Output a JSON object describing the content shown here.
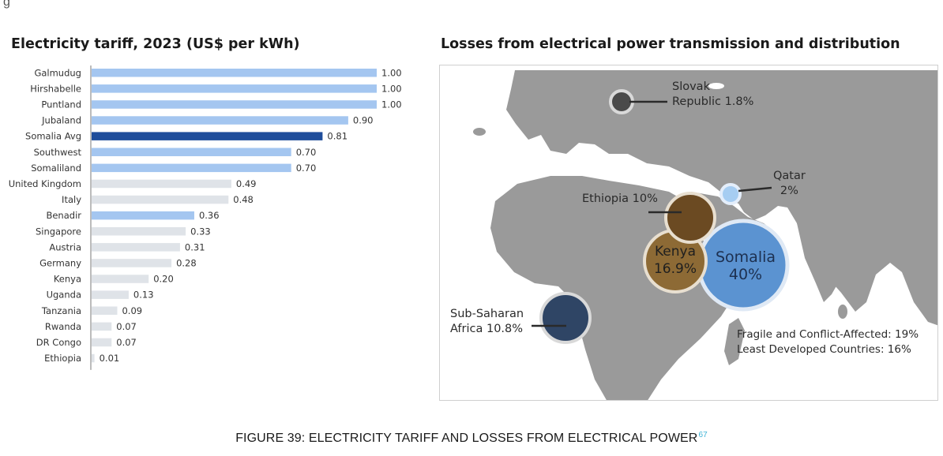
{
  "page": {
    "top_mark": "g",
    "figure_caption": "FIGURE 39: ELECTRICITY TARIFF AND LOSSES FROM ELECTRICAL POWER",
    "footnote_ref": "67"
  },
  "colors": {
    "somalia_region": "#a4c6f0",
    "somalia_avg": "#1f4d9b",
    "other_country": "#dfe3e8",
    "map_land": "#9a9a9a",
    "somalia_bubble": "#5b93d1",
    "kenya_bubble": "#8d6a35",
    "ethiopia_bubble": "#6b4a22",
    "subsaharan_bubble": "#2f4565",
    "qatar_bubble": "#a6cdf2",
    "slovak_bubble": "#4a4a4a"
  },
  "chart_data": [
    {
      "type": "bar",
      "orientation": "horizontal",
      "title": "Electricity tariff, 2023 (US$ per kWh)",
      "xlim": [
        0,
        1.0
      ],
      "categories": [
        "Galmudug",
        "Hirshabelle",
        "Puntland",
        "Jubaland",
        "Somalia Avg",
        "Southwest",
        "Somaliland",
        "United Kingdom",
        "Italy",
        "Benadir",
        "Singapore",
        "Austria",
        "Germany",
        "Kenya",
        "Uganda",
        "Tanzania",
        "Rwanda",
        "DR Congo",
        "Ethiopia"
      ],
      "values": [
        1.0,
        1.0,
        1.0,
        0.9,
        0.81,
        0.7,
        0.7,
        0.49,
        0.48,
        0.36,
        0.33,
        0.31,
        0.28,
        0.2,
        0.13,
        0.09,
        0.07,
        0.07,
        0.01
      ],
      "value_labels": [
        "1.00",
        "1.00",
        "1.00",
        "0.90",
        "0.81",
        "0.70",
        "0.70",
        "0.49",
        "0.48",
        "0.36",
        "0.33",
        "0.31",
        "0.28",
        "0.20",
        "0.13",
        "0.09",
        "0.07",
        "0.07",
        "0.01"
      ],
      "bar_groups": [
        "region",
        "region",
        "region",
        "region",
        "avg",
        "region",
        "region",
        "other",
        "other",
        "region",
        "other",
        "other",
        "other",
        "other",
        "other",
        "other",
        "other",
        "other",
        "other"
      ]
    },
    {
      "type": "bubble-map",
      "title": "Losses from electrical power transmission and distribution",
      "points": [
        {
          "name": "Slovak",
          "line2": "Republic 1.8%",
          "value": 1.8
        },
        {
          "name": "Qatar",
          "line2": "2%",
          "value": 2
        },
        {
          "name": "Ethiopia 10%",
          "value": 10
        },
        {
          "name": "Kenya",
          "line2": "16.9%",
          "value": 16.9
        },
        {
          "name": "Somalia",
          "line2": "40%",
          "value": 40
        },
        {
          "name": "Sub-Saharan",
          "line2": "Africa 10.8%",
          "value": 10.8
        }
      ],
      "notes": [
        "Fragile and Conflict-Affected: 19%",
        "Least Developed Countries: 16%"
      ]
    }
  ]
}
